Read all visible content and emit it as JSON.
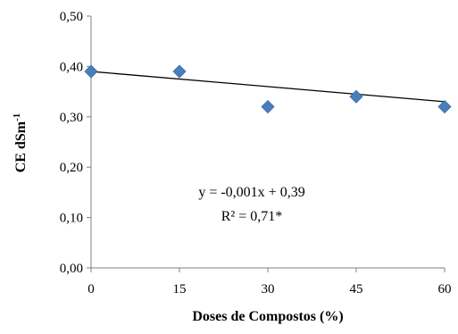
{
  "chart_data": {
    "type": "scatter",
    "xlabel": "Doses de Compostos  (%)",
    "ylabel_main": "CE dSm",
    "ylabel_superscript": "-1",
    "x": [
      0,
      15,
      30,
      45,
      60
    ],
    "y": [
      0.39,
      0.39,
      0.32,
      0.34,
      0.32
    ],
    "xlim": [
      0,
      60
    ],
    "ylim": [
      0,
      0.5
    ],
    "xticks": [
      0,
      15,
      30,
      45,
      60
    ],
    "xtick_labels": [
      "0",
      "15",
      "30",
      "45",
      "60"
    ],
    "yticks": [
      0,
      0.1,
      0.2,
      0.3,
      0.4,
      0.5
    ],
    "ytick_labels": [
      "0,00",
      "0,10",
      "0,20",
      "0,30",
      "0,40",
      "0,50"
    ],
    "trendline": {
      "slope": -0.001,
      "intercept": 0.39,
      "x_start": 0,
      "x_end": 60
    },
    "annotations": [
      "y = -0,001x  + 0,39",
      "R² = 0,71*"
    ],
    "grid": false,
    "marker": "diamond",
    "marker_color": "#4a7ebb",
    "line_color": "#000000"
  }
}
